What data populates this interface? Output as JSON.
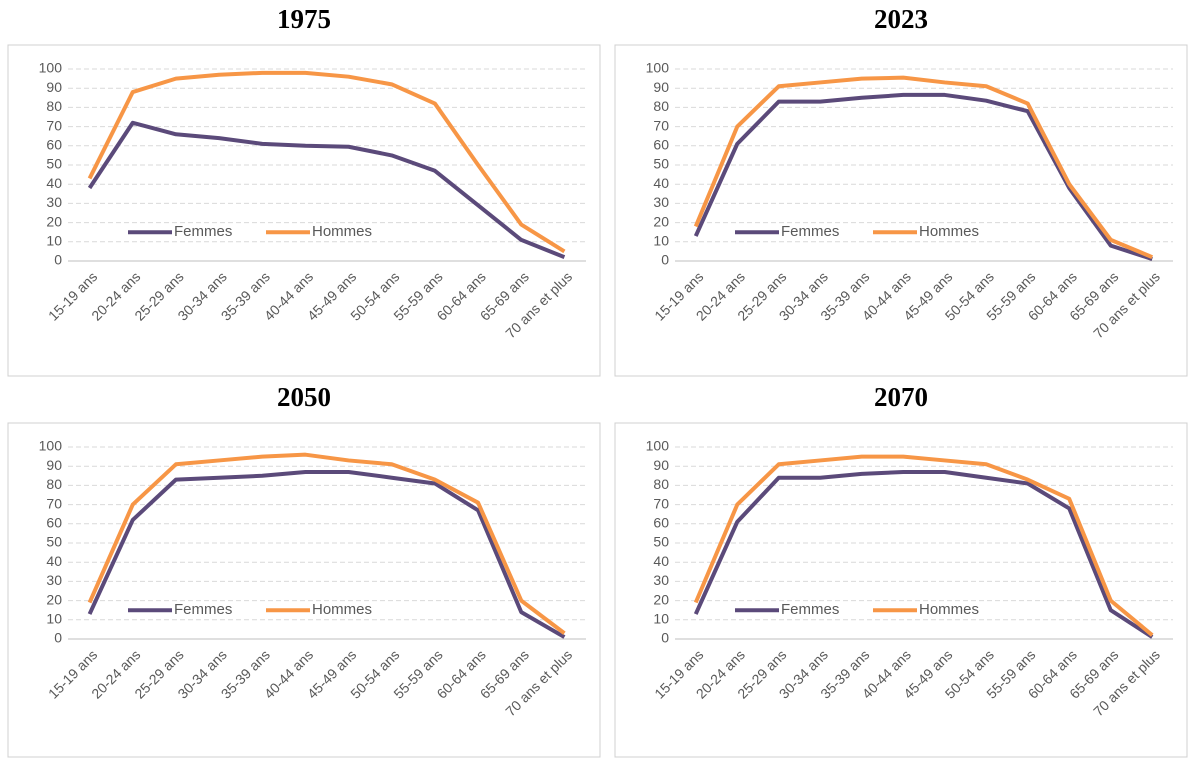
{
  "chart_data": [
    {
      "type": "line",
      "title": "1975",
      "categories": [
        "15-19 ans",
        "20-24 ans",
        "25-29 ans",
        "30-34 ans",
        "35-39 ans",
        "40-44 ans",
        "45-49 ans",
        "50-54 ans",
        "55-59 ans",
        "60-64 ans",
        "65-69 ans",
        "70 ans et plus"
      ],
      "series": [
        {
          "name": "Femmes",
          "color": "#5b4a7a",
          "values": [
            38,
            72,
            66,
            64,
            61,
            60,
            59.5,
            55,
            47,
            29,
            11,
            2
          ]
        },
        {
          "name": "Hommes",
          "color": "#f79646",
          "values": [
            43,
            88,
            95,
            97,
            98,
            98,
            96,
            92,
            82,
            50,
            19,
            5
          ]
        }
      ],
      "ylim": [
        0,
        100
      ],
      "yticks": [
        0,
        10,
        20,
        30,
        40,
        50,
        60,
        70,
        80,
        90,
        100
      ],
      "grid": true
    },
    {
      "type": "line",
      "title": "2023",
      "categories": [
        "15-19 ans",
        "20-24 ans",
        "25-29 ans",
        "30-34 ans",
        "35-39 ans",
        "40-44 ans",
        "45-49 ans",
        "50-54 ans",
        "55-59 ans",
        "60-64 ans",
        "65-69 ans",
        "70 ans et plus"
      ],
      "series": [
        {
          "name": "Femmes",
          "color": "#5b4a7a",
          "values": [
            13,
            61,
            83,
            83,
            85,
            86.5,
            86.5,
            83.5,
            78,
            38,
            8,
            1
          ]
        },
        {
          "name": "Hommes",
          "color": "#f79646",
          "values": [
            18,
            70,
            91,
            93,
            95,
            95.5,
            93,
            91,
            82,
            40,
            11,
            2
          ]
        }
      ],
      "ylim": [
        0,
        100
      ],
      "yticks": [
        0,
        10,
        20,
        30,
        40,
        50,
        60,
        70,
        80,
        90,
        100
      ],
      "grid": true
    },
    {
      "type": "line",
      "title": "2050",
      "categories": [
        "15-19 ans",
        "20-24 ans",
        "25-29 ans",
        "30-34 ans",
        "35-39 ans",
        "40-44 ans",
        "45-49 ans",
        "50-54 ans",
        "55-59 ans",
        "60-64 ans",
        "65-69 ans",
        "70 ans et plus"
      ],
      "series": [
        {
          "name": "Femmes",
          "color": "#5b4a7a",
          "values": [
            13,
            62,
            83,
            84,
            85,
            87,
            87,
            84,
            81,
            67,
            14,
            1
          ]
        },
        {
          "name": "Hommes",
          "color": "#f79646",
          "values": [
            19,
            70,
            91,
            93,
            95,
            96,
            93,
            91,
            83,
            71,
            20,
            3
          ]
        }
      ],
      "ylim": [
        0,
        100
      ],
      "yticks": [
        0,
        10,
        20,
        30,
        40,
        50,
        60,
        70,
        80,
        90,
        100
      ],
      "grid": true
    },
    {
      "type": "line",
      "title": "2070",
      "categories": [
        "15-19 ans",
        "20-24 ans",
        "25-29 ans",
        "30-34 ans",
        "35-39 ans",
        "40-44 ans",
        "45-49 ans",
        "50-54 ans",
        "55-59 ans",
        "60-64 ans",
        "65-69 ans",
        "70 ans et plus"
      ],
      "series": [
        {
          "name": "Femmes",
          "color": "#5b4a7a",
          "values": [
            13,
            61,
            84,
            84,
            86,
            87,
            87,
            84,
            81,
            68,
            15,
            1
          ]
        },
        {
          "name": "Hommes",
          "color": "#f79646",
          "values": [
            19,
            70,
            91,
            93,
            95,
            95,
            93,
            91,
            83,
            73,
            20,
            2
          ]
        }
      ],
      "ylim": [
        0,
        100
      ],
      "yticks": [
        0,
        10,
        20,
        30,
        40,
        50,
        60,
        70,
        80,
        90,
        100
      ],
      "grid": true
    }
  ]
}
